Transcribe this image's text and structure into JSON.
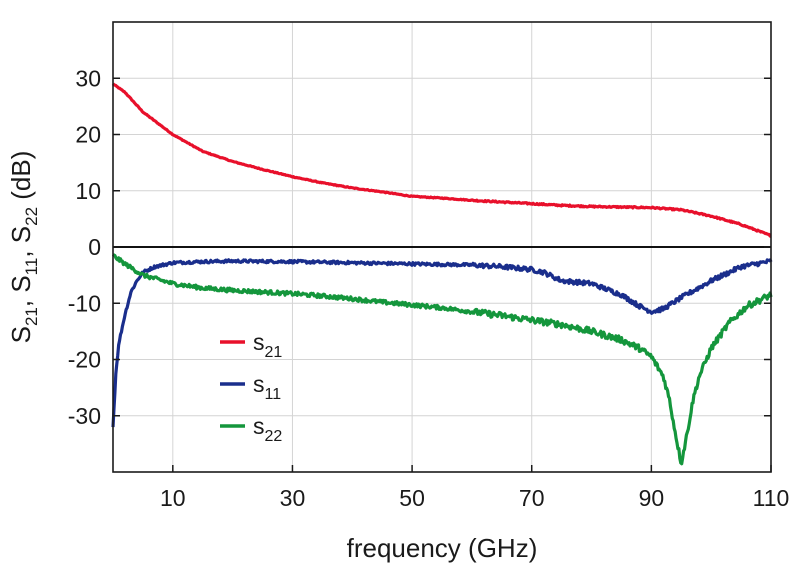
{
  "chart_data": {
    "type": "line",
    "title": "",
    "xlabel": "frequency (GHz)",
    "ylabel_parts": [
      "S",
      "21",
      ", S",
      "11",
      ", S",
      "22",
      " (dB)"
    ],
    "xlim": [
      0,
      110
    ],
    "ylim": [
      -40,
      40
    ],
    "x_ticks": [
      10,
      30,
      50,
      70,
      90,
      110
    ],
    "x_tick_labels": [
      "10",
      "30",
      "50",
      "70",
      "90",
      "110"
    ],
    "y_ticks": [
      30,
      20,
      10,
      0,
      -10,
      -20,
      -30
    ],
    "y_tick_labels": [
      "30",
      "20",
      "10",
      "0",
      "-10",
      "-20",
      "-30"
    ],
    "grid": true,
    "zero_line": true,
    "legend_position": "lower-left",
    "series": [
      {
        "name": "s21",
        "label_main": "s",
        "label_sub": "21",
        "color": "#e8102b",
        "x": [
          0,
          2,
          5,
          10,
          15,
          20,
          25,
          30,
          35,
          40,
          45,
          50,
          55,
          60,
          65,
          70,
          75,
          80,
          85,
          90,
          95,
          100,
          105,
          110
        ],
        "y": [
          29,
          27.5,
          24,
          20,
          17,
          15.2,
          13.8,
          12.5,
          11.4,
          10.5,
          9.8,
          9.0,
          8.7,
          8.3,
          8.0,
          7.7,
          7.4,
          7.2,
          7.1,
          7.0,
          6.6,
          5.5,
          4,
          2
        ]
      },
      {
        "name": "s11",
        "label_main": "s",
        "label_sub": "11",
        "color": "#1a2e8c",
        "x": [
          0,
          0.5,
          1,
          2,
          3,
          4,
          5,
          7,
          10,
          15,
          20,
          30,
          40,
          50,
          60,
          65,
          70,
          72,
          75,
          80,
          85,
          88,
          90,
          92,
          95,
          100,
          105,
          110
        ],
        "y": [
          -32,
          -22,
          -17,
          -12,
          -8,
          -6,
          -4.5,
          -3.5,
          -2.8,
          -2.6,
          -2.5,
          -2.6,
          -2.8,
          -3.0,
          -3.2,
          -3.5,
          -4.0,
          -4.5,
          -6,
          -6.5,
          -8.5,
          -10.5,
          -11.5,
          -11,
          -9,
          -6,
          -3.5,
          -2.5
        ]
      },
      {
        "name": "s22",
        "label_main": "s",
        "label_sub": "22",
        "color": "#14963c",
        "x": [
          0,
          2,
          5,
          10,
          15,
          20,
          25,
          30,
          35,
          40,
          45,
          50,
          55,
          60,
          65,
          70,
          75,
          80,
          85,
          88,
          90,
          92,
          93,
          94,
          95,
          96,
          97,
          98,
          100,
          103,
          106,
          110
        ],
        "y": [
          -1.5,
          -3,
          -5,
          -6.5,
          -7.3,
          -7.7,
          -8.0,
          -8.3,
          -8.7,
          -9.2,
          -9.8,
          -10.3,
          -10.8,
          -11.5,
          -12.2,
          -13,
          -13.8,
          -15,
          -16.5,
          -18,
          -19.5,
          -23,
          -27,
          -33,
          -38.5,
          -33,
          -27,
          -23,
          -18,
          -13.5,
          -10.5,
          -8.5
        ]
      }
    ]
  }
}
